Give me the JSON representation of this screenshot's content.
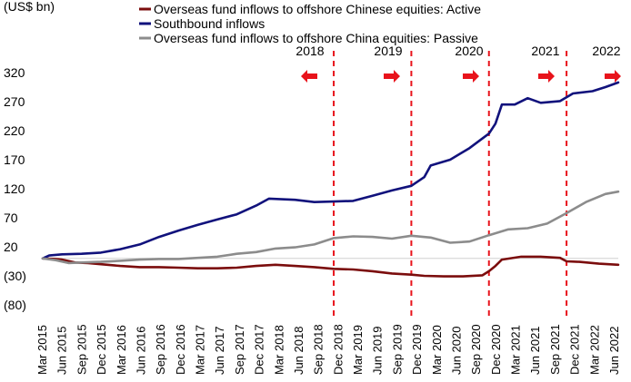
{
  "chart_data": {
    "type": "line",
    "title": "",
    "xlabel": "",
    "ylabel": "",
    "unit_label": "(US$ bn)",
    "ylim": [
      -80,
      320
    ],
    "y_ticks": [
      {
        "value": 320,
        "label": "320"
      },
      {
        "value": 270,
        "label": "270"
      },
      {
        "value": 220,
        "label": "220"
      },
      {
        "value": 170,
        "label": "170"
      },
      {
        "value": 120,
        "label": "120"
      },
      {
        "value": 70,
        "label": "70"
      },
      {
        "value": 20,
        "label": "20"
      },
      {
        "value": -30,
        "label": "(30)"
      },
      {
        "value": -80,
        "label": "(80)"
      }
    ],
    "x_range": [
      "2015-03",
      "2022-08"
    ],
    "x_tick_labels": [
      "Mar 2015",
      "Jun 2015",
      "Sep 2015",
      "Dec 2015",
      "Mar 2016",
      "Jun 2016",
      "Sep 2016",
      "Dec 2016",
      "Mar 2017",
      "Jun 2017",
      "Sep 2017",
      "Dec 2017",
      "Mar 2018",
      "Jun 2018",
      "Sep 2018",
      "Dec 2018",
      "Mar 2019",
      "Jun 2019",
      "Sep 2019",
      "Dec 2019",
      "Mar 2020",
      "Jun 2020",
      "Sep 2020",
      "Dec 2020",
      "Mar 2021",
      "Jun 2021",
      "Sep 2021",
      "Dec 2021",
      "Mar 2022",
      "Jun 2022"
    ],
    "legend_position": "top-left",
    "colors": {
      "active": "#7b0d0d",
      "southbound": "#11127c",
      "passive": "#8c8c8c",
      "divider": "#e8131b",
      "arrow": "#e8131b",
      "zero": "#d0d0d0"
    },
    "series": [
      {
        "name": "Overseas fund inflows to offshore Chinese equities: Active",
        "key": "active",
        "points": [
          [
            "2015-03",
            0
          ],
          [
            "2015-05",
            -1
          ],
          [
            "2015-06",
            -2
          ],
          [
            "2015-08",
            -7
          ],
          [
            "2015-10",
            -8
          ],
          [
            "2015-12",
            -10
          ],
          [
            "2016-03",
            -13
          ],
          [
            "2016-06",
            -15
          ],
          [
            "2016-09",
            -15
          ],
          [
            "2016-12",
            -16
          ],
          [
            "2017-03",
            -17
          ],
          [
            "2017-06",
            -17
          ],
          [
            "2017-09",
            -16
          ],
          [
            "2017-12",
            -13
          ],
          [
            "2018-03",
            -11
          ],
          [
            "2018-06",
            -13
          ],
          [
            "2018-09",
            -15
          ],
          [
            "2018-12",
            -18
          ],
          [
            "2019-03",
            -19
          ],
          [
            "2019-06",
            -22
          ],
          [
            "2019-09",
            -26
          ],
          [
            "2019-12",
            -28
          ],
          [
            "2020-02",
            -30
          ],
          [
            "2020-05",
            -31
          ],
          [
            "2020-08",
            -31
          ],
          [
            "2020-11",
            -29
          ],
          [
            "2020-12",
            -22
          ],
          [
            "2021-01",
            -13
          ],
          [
            "2021-02",
            -2
          ],
          [
            "2021-05",
            3
          ],
          [
            "2021-08",
            3
          ],
          [
            "2021-11",
            1
          ],
          [
            "2021-12",
            -5
          ],
          [
            "2022-02",
            -6
          ],
          [
            "2022-05",
            -9
          ],
          [
            "2022-08",
            -11
          ]
        ]
      },
      {
        "name": "Southbound inflows",
        "key": "southbound",
        "points": [
          [
            "2015-03",
            0
          ],
          [
            "2015-04",
            5
          ],
          [
            "2015-06",
            7
          ],
          [
            "2015-09",
            8
          ],
          [
            "2015-12",
            10
          ],
          [
            "2016-03",
            16
          ],
          [
            "2016-06",
            24
          ],
          [
            "2016-09",
            37
          ],
          [
            "2016-12",
            48
          ],
          [
            "2017-03",
            58
          ],
          [
            "2017-06",
            67
          ],
          [
            "2017-09",
            76
          ],
          [
            "2017-12",
            91
          ],
          [
            "2018-02",
            103
          ],
          [
            "2018-06",
            101
          ],
          [
            "2018-09",
            97
          ],
          [
            "2018-12",
            98
          ],
          [
            "2019-03",
            99
          ],
          [
            "2019-06",
            108
          ],
          [
            "2019-09",
            117
          ],
          [
            "2019-12",
            125
          ],
          [
            "2020-02",
            140
          ],
          [
            "2020-03",
            160
          ],
          [
            "2020-06",
            170
          ],
          [
            "2020-09",
            190
          ],
          [
            "2020-12",
            215
          ],
          [
            "2021-01",
            232
          ],
          [
            "2021-02",
            265
          ],
          [
            "2021-04",
            265
          ],
          [
            "2021-06",
            276
          ],
          [
            "2021-08",
            268
          ],
          [
            "2021-11",
            271
          ],
          [
            "2022-01",
            284
          ],
          [
            "2022-04",
            288
          ],
          [
            "2022-06",
            295
          ],
          [
            "2022-08",
            303
          ]
        ]
      },
      {
        "name": "Overseas fund inflows to offshore China equities: Passive",
        "key": "passive",
        "points": [
          [
            "2015-03",
            0
          ],
          [
            "2015-05",
            -3
          ],
          [
            "2015-07",
            -8
          ],
          [
            "2015-09",
            -7
          ],
          [
            "2015-12",
            -6
          ],
          [
            "2016-03",
            -4
          ],
          [
            "2016-06",
            -2
          ],
          [
            "2016-09",
            -1
          ],
          [
            "2016-12",
            -1
          ],
          [
            "2017-03",
            1
          ],
          [
            "2017-06",
            3
          ],
          [
            "2017-09",
            8
          ],
          [
            "2017-12",
            11
          ],
          [
            "2018-03",
            17
          ],
          [
            "2018-06",
            19
          ],
          [
            "2018-09",
            24
          ],
          [
            "2018-12",
            35
          ],
          [
            "2019-03",
            38
          ],
          [
            "2019-06",
            37
          ],
          [
            "2019-09",
            34
          ],
          [
            "2019-12",
            39
          ],
          [
            "2020-03",
            36
          ],
          [
            "2020-06",
            27
          ],
          [
            "2020-09",
            29
          ],
          [
            "2020-12",
            40
          ],
          [
            "2021-03",
            50
          ],
          [
            "2021-06",
            52
          ],
          [
            "2021-09",
            60
          ],
          [
            "2021-12",
            78
          ],
          [
            "2022-03",
            97
          ],
          [
            "2022-06",
            111
          ],
          [
            "2022-08",
            115
          ]
        ]
      }
    ],
    "year_markers": [
      {
        "label": "2018",
        "divider": "2018-12",
        "arrow": "left"
      },
      {
        "label": "2019",
        "divider": "2019-12",
        "arrow": "right"
      },
      {
        "label": "2020",
        "divider": "2020-12",
        "arrow": "right"
      },
      {
        "label": "2021",
        "divider": "2021-12",
        "arrow": "right"
      },
      {
        "label": "2022",
        "divider": null,
        "arrow": "right"
      }
    ]
  }
}
